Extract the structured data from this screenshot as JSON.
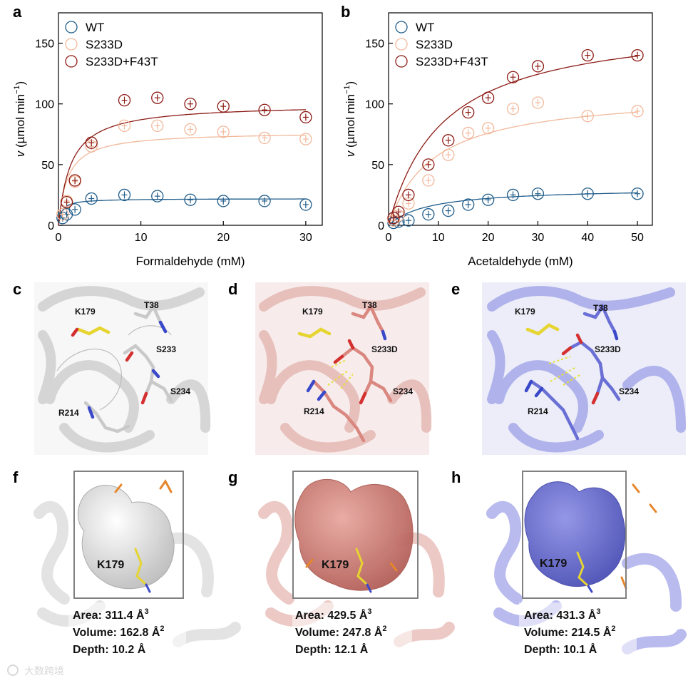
{
  "panel_letters": {
    "a": "a",
    "b": "b",
    "c": "c",
    "d": "d",
    "e": "e",
    "f": "f",
    "g": "g",
    "h": "h"
  },
  "colors": {
    "WT": "#1f5c8a",
    "S233D": "#f2b89a",
    "S233D+F43T": "#8c1a14",
    "wt_struct": "#d9d9d9",
    "s233d_struct": "#e3a39c",
    "f43t_struct": "#8f92dc"
  },
  "chart_data": [
    {
      "type": "scatter",
      "panel": "a",
      "xlabel": "Formaldehyde (mM)",
      "ylabel": "v (µmol min−1)",
      "xlim": [
        0,
        32
      ],
      "ylim": [
        0,
        175
      ],
      "xticks": [
        "0",
        "10",
        "20",
        "30"
      ],
      "yticks": [
        "0",
        "50",
        "100",
        "150"
      ],
      "legend_position": "top-left",
      "legend": [
        "WT",
        "S233D",
        "S233D+F43T"
      ],
      "series": [
        {
          "name": "WT",
          "x": [
            0.5,
            1,
            2,
            4,
            8,
            12,
            16,
            20,
            25,
            30
          ],
          "y": [
            6,
            9,
            13,
            22,
            25,
            24,
            21,
            20,
            20,
            17
          ],
          "vmax": 22,
          "km": 0.4
        },
        {
          "name": "S233D",
          "x": [
            0.5,
            1,
            2,
            4,
            8,
            12,
            16,
            20,
            25,
            30
          ],
          "y": [
            9,
            20,
            36,
            65,
            82,
            82,
            79,
            77,
            72,
            71
          ],
          "vmax": 77,
          "km": 1.1
        },
        {
          "name": "S233D+F43T",
          "x": [
            1,
            2,
            4,
            8,
            12,
            16,
            20,
            25,
            30
          ],
          "y": [
            19,
            37,
            68,
            103,
            105,
            100,
            98,
            95,
            89
          ],
          "vmax": 100,
          "km": 1.5
        }
      ]
    },
    {
      "type": "scatter",
      "panel": "b",
      "xlabel": "Acetaldehyde (mM)",
      "ylabel": "v (µmol min−1)",
      "xlim": [
        0,
        53
      ],
      "ylim": [
        0,
        175
      ],
      "xticks": [
        "0",
        "10",
        "20",
        "30",
        "40",
        "50"
      ],
      "yticks": [
        "0",
        "50",
        "100",
        "150"
      ],
      "legend_position": "top-left",
      "legend": [
        "WT",
        "S233D",
        "S233D+F43T"
      ],
      "series": [
        {
          "name": "WT",
          "x": [
            1,
            2,
            4,
            8,
            12,
            16,
            20,
            25,
            30,
            40,
            50
          ],
          "y": [
            2,
            3,
            4,
            9,
            12,
            17,
            21,
            25,
            26,
            26,
            26
          ],
          "vmax": 31,
          "km": 8
        },
        {
          "name": "S233D",
          "x": [
            1,
            2,
            4,
            8,
            12,
            16,
            20,
            25,
            30,
            40,
            50
          ],
          "y": [
            4,
            8,
            18,
            37,
            58,
            76,
            80,
            96,
            101,
            90,
            94
          ],
          "vmax": 110,
          "km": 9
        },
        {
          "name": "S233D+F43T",
          "x": [
            1,
            2,
            4,
            8,
            12,
            16,
            20,
            25,
            30,
            40,
            50
          ],
          "y": [
            6,
            11,
            25,
            50,
            70,
            93,
            105,
            122,
            131,
            140,
            140
          ],
          "vmax": 170,
          "km": 11
        }
      ]
    }
  ],
  "structures": {
    "c": {
      "K179": "K179",
      "T38": "T38",
      "S233": "S233",
      "S234": "S234",
      "R214": "R214"
    },
    "d": {
      "K179": "K179",
      "T38": "T38",
      "S233": "S233D",
      "S234": "S234",
      "R214": "R214"
    },
    "e": {
      "K179": "K179",
      "T38": "T38",
      "S233": "S233D",
      "S234": "S234",
      "R214": "R214"
    }
  },
  "pockets": {
    "f": {
      "label": "K179",
      "area": "Area: 311.4 Å",
      "area_sup": "3",
      "volume": "Volume: 162.8 Å",
      "volume_sup": "2",
      "depth": "Depth: 10.2 Å"
    },
    "g": {
      "label": "K179",
      "area": "Area: 429.5 Å",
      "area_sup": "3",
      "volume": "Volume: 247.8 Å",
      "volume_sup": "2",
      "depth": "Depth: 12.1 Å"
    },
    "h": {
      "label": "K179",
      "area": "Area: 431.3 Å",
      "area_sup": "3",
      "volume": "Volume: 214.5 Å",
      "volume_sup": "2",
      "depth": "Depth: 10.1 Å"
    }
  },
  "watermark": "大数跨境"
}
